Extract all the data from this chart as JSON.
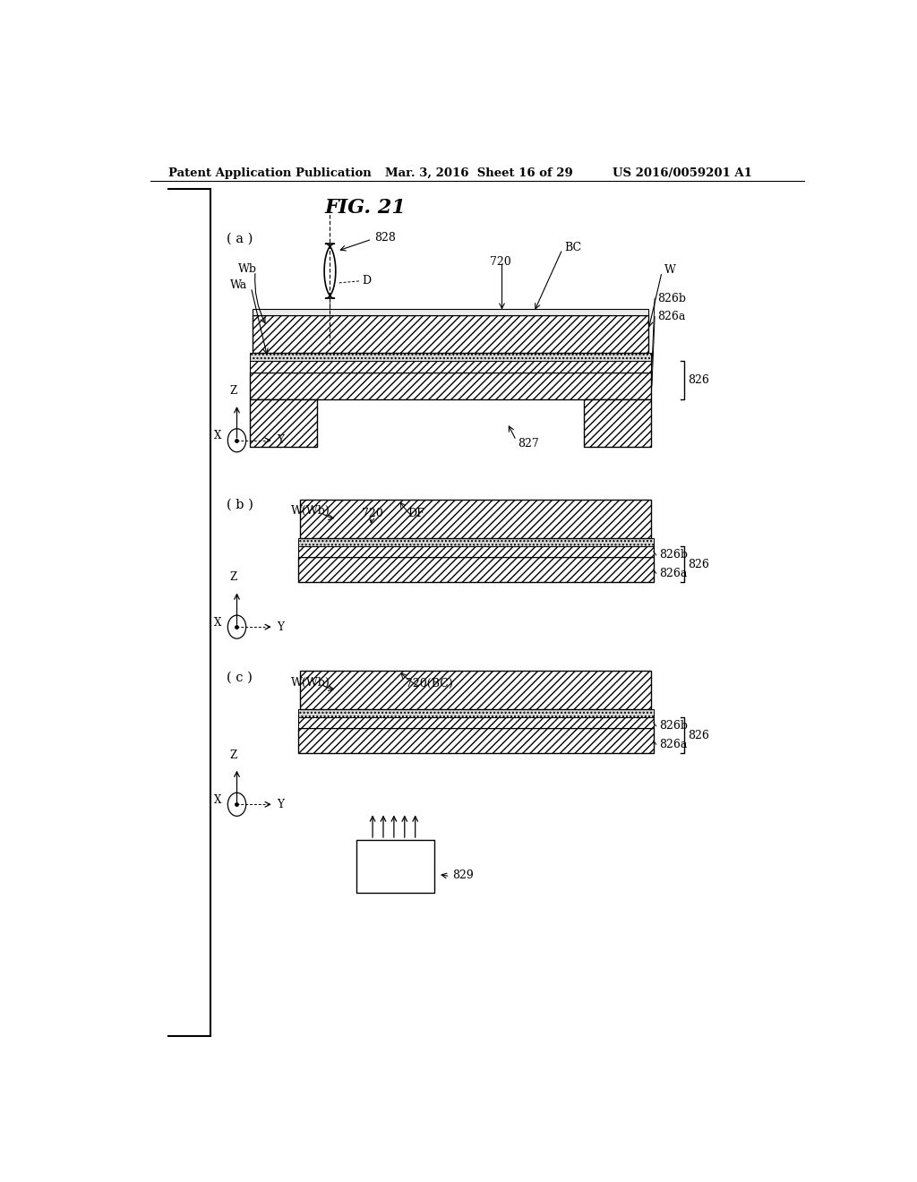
{
  "bg_color": "#ffffff",
  "text_color": "#000000",
  "line_color": "#000000",
  "header_left": "Patent Application Publication",
  "header_mid": "Mar. 3, 2016  Sheet 16 of 29",
  "header_right": "US 2016/0059201 A1",
  "fig_title": "FIG. 21",
  "panel_a_label": "( a )",
  "panel_b_label": "( b )",
  "panel_c_label": "( c )"
}
